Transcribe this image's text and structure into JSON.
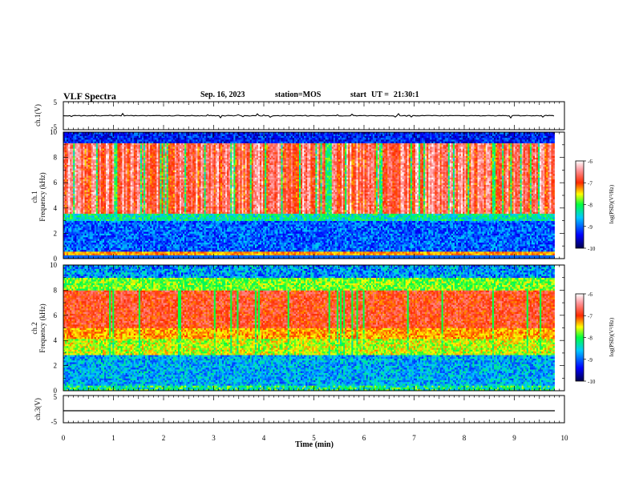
{
  "header": {
    "title": "VLF Spectra",
    "date": "Sep. 16, 2023",
    "station_label": "station=",
    "station": "MOS",
    "start_label": "start",
    "ut_label": "UT =",
    "start_time": "21:30:1"
  },
  "colors": {
    "frame": "#000000",
    "background": "#ffffff",
    "colormap": [
      "#00004a",
      "#0000ff",
      "#00c8ff",
      "#00ff40",
      "#ffff00",
      "#ff2a00",
      "#ff9aa0",
      "#ffffff"
    ]
  },
  "chart_data": [
    {
      "id": "ch1-waveform",
      "type": "line",
      "ylabel": "ch.1(V)",
      "ylim": [
        -5,
        5
      ],
      "yticks": [
        "5",
        "-5"
      ],
      "x": [
        0,
        10
      ],
      "values": [
        0,
        0
      ],
      "note_visible": "near-constant trace with small spikes"
    },
    {
      "id": "ch1-spectrogram",
      "type": "heatmap",
      "ylabel": "ch.1 Frequency (kHz)",
      "ylim": [
        0,
        10
      ],
      "yticks": [
        "0",
        "2",
        "4",
        "6",
        "8",
        "10"
      ],
      "xlim": [
        0,
        9.8
      ],
      "colorbar": {
        "label": "log(PSD)(V²/Hz)",
        "range": [
          -10,
          -6
        ],
        "ticks": [
          "-6",
          "-7",
          "-8",
          "-9",
          "-10"
        ]
      }
    },
    {
      "id": "ch2-spectrogram",
      "type": "heatmap",
      "ylabel": "ch.2 Frequency (kHz)",
      "ylim": [
        0,
        10
      ],
      "yticks": [
        "0",
        "2",
        "4",
        "6",
        "8",
        "10"
      ],
      "xlim": [
        0,
        9.8
      ],
      "colorbar": {
        "label": "log(PSD)(V²/Hz)",
        "range": [
          -10,
          -6
        ],
        "ticks": [
          "-6",
          "-7",
          "-8",
          "-9",
          "-10"
        ]
      }
    },
    {
      "id": "ch3-waveform",
      "type": "line",
      "ylabel": "ch.3(V)",
      "ylim": [
        -5,
        5
      ],
      "yticks": [
        "5",
        "-5"
      ],
      "x": [
        0,
        10
      ],
      "values": [
        -0.5,
        -0.5
      ]
    }
  ],
  "xaxis": {
    "label": "Time (min)",
    "ticks": [
      "0",
      "1",
      "2",
      "3",
      "4",
      "5",
      "6",
      "7",
      "8",
      "9",
      "10"
    ],
    "range": [
      0,
      10
    ]
  }
}
